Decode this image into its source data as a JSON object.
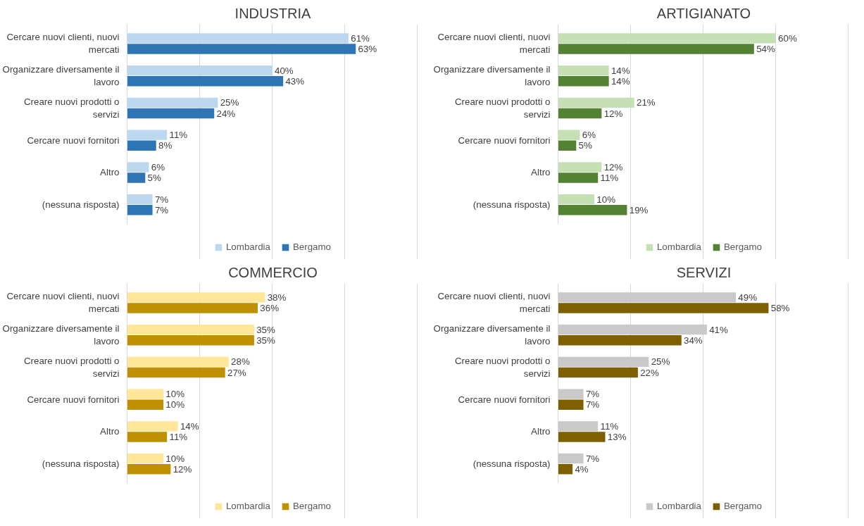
{
  "chart_data": [
    {
      "type": "bar",
      "orientation": "horizontal",
      "title": "INDUSTRIA",
      "categories": [
        "Cercare nuovi clienti, nuovi mercati",
        "Organizzare diversamente il lavoro",
        "Creare nuovi prodotti o servizi",
        "Cercare nuovi fornitori",
        "Altro",
        "(nessuna risposta)"
      ],
      "series": [
        {
          "name": "Lombardia",
          "color": "#bdd7ee",
          "values": [
            61,
            40,
            25,
            11,
            6,
            7
          ],
          "value_labels": [
            "61%",
            "40%",
            "25%",
            "11%",
            "6%",
            "7%"
          ]
        },
        {
          "name": "Bergamo",
          "color": "#2e75b6",
          "values": [
            63,
            43,
            24,
            8,
            5,
            7
          ],
          "value_labels": [
            "63%",
            "43%",
            "24%",
            "8%",
            "5%",
            "7%"
          ]
        }
      ],
      "xlim": [
        0,
        80
      ],
      "xticks": [
        {
          "value": 0,
          "label": null
        },
        {
          "value": 20,
          "label": null
        },
        {
          "value": 40,
          "label": null
        },
        {
          "value": 60,
          "label": null
        },
        {
          "value": 80,
          "label": null
        }
      ],
      "tick_labels": "y",
      "grid": "x",
      "legend": "bottom"
    },
    {
      "type": "bar",
      "orientation": "horizontal",
      "title": "ARTIGIANATO",
      "categories": [
        "Cercare nuovi clienti, nuovi mercati",
        "Organizzare diversamente il lavoro",
        "Creare nuovi prodotti o servizi",
        "Cercare nuovi fornitori",
        "Altro",
        "(nessuna risposta)"
      ],
      "series": [
        {
          "name": "Lombardia",
          "color": "#c5e0b4",
          "values": [
            60,
            14,
            21,
            6,
            12,
            10
          ],
          "value_labels": [
            "60%",
            "14%",
            "21%",
            "6%",
            "12%",
            "10%"
          ]
        },
        {
          "name": "Bergamo",
          "color": "#548235",
          "values": [
            54,
            14,
            12,
            5,
            11,
            19
          ],
          "value_labels": [
            "54%",
            "14%",
            "12%",
            "5%",
            "11%",
            "19%"
          ]
        }
      ],
      "xlim": [
        0,
        80
      ],
      "xticks": [
        {
          "value": 0,
          "label": null
        },
        {
          "value": 20,
          "label": null
        },
        {
          "value": 40,
          "label": null
        },
        {
          "value": 60,
          "label": null
        },
        {
          "value": 80,
          "label": null
        }
      ],
      "tick_labels": "y",
      "grid": "x",
      "legend": "bottom"
    },
    {
      "type": "bar",
      "orientation": "horizontal",
      "title": "COMMERCIO",
      "categories": [
        "Cercare nuovi clienti, nuovi mercati",
        "Organizzare diversamente il lavoro",
        "Creare nuovi prodotti o servizi",
        "Cercare nuovi fornitori",
        "Altro",
        "(nessuna risposta)"
      ],
      "series": [
        {
          "name": "Lombardia",
          "color": "#ffe699",
          "values": [
            38,
            35,
            28,
            10,
            14,
            10
          ],
          "value_labels": [
            "38%",
            "35%",
            "28%",
            "10%",
            "14%",
            "10%"
          ]
        },
        {
          "name": "Bergamo",
          "color": "#bf9000",
          "values": [
            36,
            35,
            27,
            10,
            11,
            12
          ],
          "value_labels": [
            "36%",
            "35%",
            "27%",
            "10%",
            "11%",
            "12%"
          ]
        }
      ],
      "xlim": [
        0,
        80
      ],
      "xticks": [
        {
          "value": 0,
          "label": null
        },
        {
          "value": 20,
          "label": null
        },
        {
          "value": 40,
          "label": null
        },
        {
          "value": 60,
          "label": null
        },
        {
          "value": 80,
          "label": null
        }
      ],
      "tick_labels": "y",
      "grid": "x",
      "legend": "bottom"
    },
    {
      "type": "bar",
      "orientation": "horizontal",
      "title": "SERVIZI",
      "categories": [
        "Cercare nuovi clienti, nuovi mercati",
        "Organizzare diversamente il lavoro",
        "Creare nuovi prodotti o servizi",
        "Cercare nuovi fornitori",
        "Altro",
        "(nessuna risposta)"
      ],
      "series": [
        {
          "name": "Lombardia",
          "color": "#c9c9c9",
          "values": [
            49,
            41,
            25,
            7,
            11,
            7
          ],
          "value_labels": [
            "49%",
            "41%",
            "25%",
            "7%",
            "11%",
            "7%"
          ]
        },
        {
          "name": "Bergamo",
          "color": "#7f6000",
          "values": [
            58,
            34,
            22,
            7,
            13,
            4
          ],
          "value_labels": [
            "58%",
            "34%",
            "22%",
            "7%",
            "13%",
            "4%"
          ]
        }
      ],
      "xlim": [
        0,
        80
      ],
      "xticks": [
        {
          "value": 0,
          "label": null
        },
        {
          "value": 20,
          "label": null
        },
        {
          "value": 40,
          "label": null
        },
        {
          "value": 60,
          "label": null
        },
        {
          "value": 80,
          "label": null
        }
      ],
      "tick_labels": "y",
      "grid": "x",
      "legend": "bottom"
    }
  ]
}
